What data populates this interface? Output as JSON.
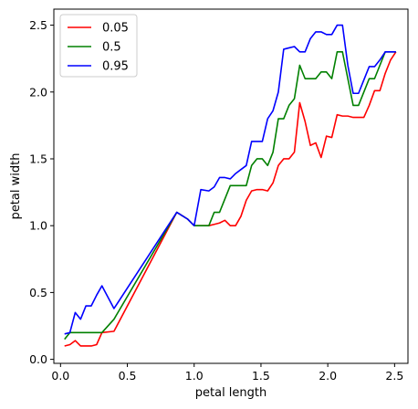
{
  "chart_data": {
    "type": "line",
    "xlabel": "petal length",
    "ylabel": "petal width",
    "xlim": [
      -0.05,
      2.6
    ],
    "ylim": [
      -0.03,
      2.62
    ],
    "xticks": [
      0.0,
      0.5,
      1.0,
      1.5,
      2.0,
      2.5
    ],
    "xtick_labels": [
      "0.0",
      "0.5",
      "1.0",
      "1.5",
      "2.0",
      "2.5"
    ],
    "yticks": [
      0.0,
      0.5,
      1.0,
      1.5,
      2.0,
      2.5
    ],
    "ytick_labels": [
      "0.0",
      "0.5",
      "1.0",
      "1.5",
      "2.0",
      "2.5"
    ],
    "grid": false,
    "legend_position": "top-left",
    "series": [
      {
        "name": "0.05",
        "color": "#ff0000",
        "x": [
          0.03,
          0.07,
          0.11,
          0.15,
          0.19,
          0.23,
          0.27,
          0.31,
          0.4,
          0.87,
          0.95,
          1.0,
          1.05,
          1.11,
          1.15,
          1.19,
          1.23,
          1.27,
          1.31,
          1.35,
          1.39,
          1.43,
          1.47,
          1.51,
          1.55,
          1.59,
          1.63,
          1.67,
          1.71,
          1.75,
          1.79,
          1.83,
          1.87,
          1.91,
          1.95,
          1.99,
          2.03,
          2.07,
          2.11,
          2.15,
          2.19,
          2.23,
          2.27,
          2.31,
          2.35,
          2.39,
          2.43,
          2.47,
          2.51
        ],
        "y": [
          0.1,
          0.11,
          0.14,
          0.1,
          0.1,
          0.1,
          0.11,
          0.2,
          0.21,
          1.1,
          1.05,
          1.0,
          1.0,
          1.0,
          1.01,
          1.02,
          1.04,
          1.0,
          1.0,
          1.07,
          1.19,
          1.26,
          1.27,
          1.27,
          1.26,
          1.32,
          1.45,
          1.5,
          1.5,
          1.55,
          1.92,
          1.78,
          1.6,
          1.62,
          1.51,
          1.67,
          1.66,
          1.83,
          1.82,
          1.82,
          1.81,
          1.81,
          1.81,
          1.9,
          2.01,
          2.01,
          2.14,
          2.24,
          2.3
        ]
      },
      {
        "name": "0.5",
        "color": "#008000",
        "x": [
          0.03,
          0.07,
          0.11,
          0.15,
          0.19,
          0.23,
          0.27,
          0.31,
          0.4,
          0.87,
          0.95,
          1.0,
          1.05,
          1.11,
          1.15,
          1.19,
          1.23,
          1.27,
          1.31,
          1.35,
          1.39,
          1.43,
          1.47,
          1.51,
          1.55,
          1.59,
          1.63,
          1.67,
          1.71,
          1.75,
          1.79,
          1.83,
          1.87,
          1.91,
          1.95,
          1.99,
          2.03,
          2.07,
          2.11,
          2.15,
          2.19,
          2.23,
          2.27,
          2.31,
          2.35,
          2.39,
          2.43,
          2.47,
          2.51
        ],
        "y": [
          0.15,
          0.2,
          0.2,
          0.2,
          0.2,
          0.2,
          0.2,
          0.2,
          0.3,
          1.1,
          1.05,
          1.0,
          1.0,
          1.0,
          1.1,
          1.1,
          1.2,
          1.3,
          1.3,
          1.3,
          1.3,
          1.45,
          1.5,
          1.5,
          1.45,
          1.55,
          1.8,
          1.8,
          1.9,
          1.95,
          2.2,
          2.1,
          2.1,
          2.1,
          2.15,
          2.15,
          2.1,
          2.3,
          2.3,
          2.1,
          1.9,
          1.9,
          2.0,
          2.1,
          2.1,
          2.2,
          2.3,
          2.3,
          2.3
        ]
      },
      {
        "name": "0.95",
        "color": "#0000ff",
        "x": [
          0.03,
          0.07,
          0.11,
          0.15,
          0.19,
          0.23,
          0.27,
          0.31,
          0.4,
          0.87,
          0.95,
          1.0,
          1.05,
          1.11,
          1.15,
          1.19,
          1.23,
          1.27,
          1.31,
          1.35,
          1.39,
          1.43,
          1.47,
          1.51,
          1.55,
          1.59,
          1.63,
          1.67,
          1.71,
          1.75,
          1.79,
          1.83,
          1.87,
          1.91,
          1.95,
          1.99,
          2.03,
          2.07,
          2.11,
          2.15,
          2.19,
          2.23,
          2.27,
          2.31,
          2.35,
          2.39,
          2.43,
          2.47,
          2.51
        ],
        "y": [
          0.19,
          0.2,
          0.35,
          0.3,
          0.4,
          0.4,
          0.48,
          0.55,
          0.38,
          1.1,
          1.05,
          1.0,
          1.27,
          1.26,
          1.29,
          1.36,
          1.36,
          1.35,
          1.39,
          1.42,
          1.45,
          1.63,
          1.63,
          1.63,
          1.8,
          1.86,
          2.0,
          2.32,
          2.33,
          2.34,
          2.3,
          2.3,
          2.4,
          2.45,
          2.45,
          2.43,
          2.43,
          2.5,
          2.5,
          2.2,
          1.99,
          1.99,
          2.09,
          2.19,
          2.19,
          2.24,
          2.3,
          2.3,
          2.3
        ]
      }
    ]
  }
}
